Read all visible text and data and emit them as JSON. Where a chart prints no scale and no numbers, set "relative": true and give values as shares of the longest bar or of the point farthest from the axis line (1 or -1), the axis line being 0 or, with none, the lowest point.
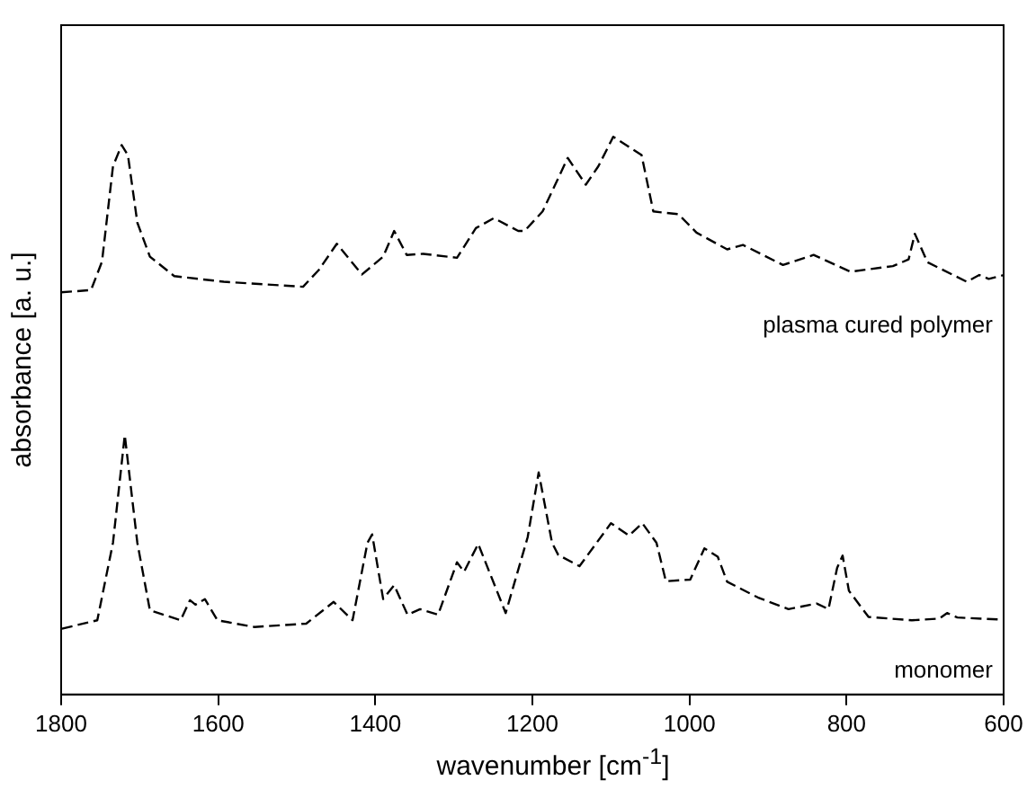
{
  "chart_data": {
    "type": "line",
    "xlabel": "wavenumber [cm$^{-1}$]",
    "ylabel": "absorbance [a. u.]",
    "relative": true,
    "xlim": [
      1800,
      600
    ],
    "xticks": [
      1800,
      1600,
      1400,
      1200,
      1000,
      800,
      600
    ],
    "legend": false,
    "grid": false,
    "marker": "none",
    "line_style": "dashed",
    "series": [
      {
        "name": "plasma cured polymer",
        "color": "#000000",
        "x": [
          1800,
          1762,
          1748,
          1734,
          1723,
          1715,
          1703,
          1687,
          1656,
          1593,
          1492,
          1472,
          1449,
          1417,
          1390,
          1376,
          1360,
          1339,
          1296,
          1272,
          1249,
          1218,
          1210,
          1187,
          1155,
          1132,
          1116,
          1097,
          1061,
          1046,
          1014,
          991,
          952,
          932,
          881,
          842,
          795,
          741,
          721,
          713,
          697,
          647,
          631,
          619,
          600
        ],
        "values": [
          0.721,
          0.725,
          0.776,
          0.947,
          0.985,
          0.967,
          0.846,
          0.785,
          0.75,
          0.74,
          0.731,
          0.761,
          0.808,
          0.753,
          0.785,
          0.831,
          0.788,
          0.79,
          0.783,
          0.836,
          0.854,
          0.831,
          0.831,
          0.866,
          0.962,
          0.914,
          0.947,
          1,
          0.967,
          0.866,
          0.861,
          0.828,
          0.798,
          0.806,
          0.77,
          0.788,
          0.758,
          0.768,
          0.78,
          0.826,
          0.775,
          0.74,
          0.752,
          0.745,
          0.752
        ]
      },
      {
        "name": "monomer",
        "color": "#000000",
        "x": [
          1799,
          1754,
          1734,
          1719,
          1703,
          1687,
          1648,
          1636,
          1629,
          1617,
          1601,
          1554,
          1488,
          1453,
          1429,
          1410,
          1404,
          1390,
          1376,
          1359,
          1343,
          1320,
          1296,
          1287,
          1269,
          1234,
          1206,
          1192,
          1175,
          1167,
          1140,
          1100,
          1077,
          1060,
          1042,
          1030,
          999,
          981,
          964,
          952,
          913,
          874,
          838,
          823,
          812,
          805,
          797,
          772,
          717,
          682,
          672,
          659,
          600
        ],
        "values": [
          0.118,
          0.133,
          0.272,
          0.465,
          0.272,
          0.151,
          0.133,
          0.169,
          0.161,
          0.171,
          0.133,
          0.121,
          0.127,
          0.166,
          0.133,
          0.272,
          0.287,
          0.171,
          0.196,
          0.143,
          0.153,
          0.143,
          0.237,
          0.22,
          0.27,
          0.146,
          0.282,
          0.398,
          0.272,
          0.25,
          0.23,
          0.307,
          0.285,
          0.307,
          0.272,
          0.203,
          0.206,
          0.262,
          0.247,
          0.202,
          0.174,
          0.153,
          0.163,
          0.153,
          0.227,
          0.249,
          0.186,
          0.139,
          0.133,
          0.136,
          0.146,
          0.138,
          0.134
        ]
      }
    ]
  }
}
